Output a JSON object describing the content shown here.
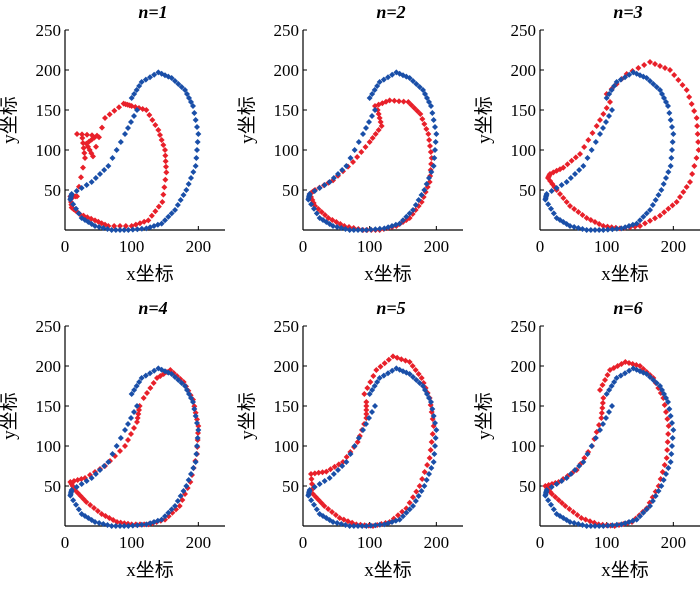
{
  "chart_data": [
    {
      "type": "scatter",
      "title": "n=1",
      "xlabel": "x坐标",
      "ylabel": "y坐标",
      "xlim": [
        0,
        240
      ],
      "ylim": [
        0,
        250
      ],
      "xticks": [
        "0",
        "100",
        "200"
      ],
      "yticks": [
        "50",
        "100",
        "150",
        "200",
        "250"
      ],
      "series": [
        {
          "color": "#e8202a",
          "x": [
            18,
            48,
            32,
            42,
            60,
            88,
            100,
            122,
            140,
            150,
            152,
            146,
            125,
            100,
            65,
            45,
            22,
            10,
            8,
            18,
            30,
            26
          ],
          "y": [
            120,
            118,
            108,
            92,
            140,
            158,
            155,
            150,
            125,
            100,
            72,
            35,
            12,
            5,
            5,
            12,
            20,
            28,
            42,
            42,
            90,
            115
          ]
        },
        {
          "color": "#1a4fa8",
          "x": [
            100,
            115,
            140,
            160,
            180,
            192,
            200,
            196,
            182,
            165,
            145,
            122,
            95,
            70,
            45,
            25,
            8,
            10,
            40,
            65,
            90,
            108
          ],
          "y": [
            165,
            185,
            197,
            190,
            175,
            155,
            120,
            80,
            50,
            25,
            8,
            2,
            0,
            0,
            5,
            15,
            38,
            45,
            60,
            80,
            120,
            150
          ]
        }
      ]
    },
    {
      "type": "scatter",
      "title": "n=2",
      "xlabel": "x坐标",
      "ylabel": "y坐标",
      "xlim": [
        0,
        240
      ],
      "ylim": [
        0,
        250
      ],
      "xticks": [
        "0",
        "100",
        "200"
      ],
      "yticks": [
        "50",
        "100",
        "150",
        "200",
        "250"
      ],
      "series": [
        {
          "color": "#e8202a",
          "x": [
            108,
            130,
            158,
            176,
            188,
            193,
            190,
            178,
            160,
            140,
            115,
            90,
            62,
            38,
            18,
            10,
            18,
            45,
            75,
            100,
            118,
            112
          ],
          "y": [
            155,
            162,
            160,
            145,
            120,
            90,
            60,
            35,
            15,
            5,
            0,
            0,
            5,
            15,
            30,
            45,
            50,
            62,
            85,
            110,
            130,
            150
          ]
        },
        {
          "color": "#1a4fa8",
          "x": [
            100,
            115,
            140,
            160,
            180,
            192,
            200,
            196,
            182,
            165,
            145,
            122,
            95,
            70,
            45,
            25,
            8,
            10,
            40,
            65,
            90,
            108
          ],
          "y": [
            165,
            185,
            197,
            190,
            175,
            155,
            120,
            80,
            50,
            25,
            8,
            2,
            0,
            0,
            5,
            15,
            38,
            45,
            60,
            80,
            120,
            150
          ]
        }
      ]
    },
    {
      "type": "scatter",
      "title": "n=3",
      "xlabel": "x坐标",
      "ylabel": "y坐标",
      "xlim": [
        0,
        240
      ],
      "ylim": [
        0,
        250
      ],
      "xticks": [
        "0",
        "100",
        "200"
      ],
      "yticks": [
        "50",
        "100",
        "150",
        "200",
        "250"
      ],
      "series": [
        {
          "color": "#e8202a",
          "x": [
            100,
            130,
            165,
            195,
            220,
            235,
            238,
            225,
            205,
            180,
            150,
            120,
            95,
            70,
            45,
            25,
            12,
            15,
            35,
            60,
            85,
            105
          ],
          "y": [
            170,
            195,
            210,
            200,
            175,
            140,
            100,
            60,
            35,
            18,
            5,
            2,
            5,
            15,
            30,
            50,
            65,
            70,
            78,
            95,
            130,
            160
          ]
        },
        {
          "color": "#1a4fa8",
          "x": [
            100,
            115,
            140,
            160,
            180,
            192,
            200,
            196,
            182,
            165,
            145,
            122,
            95,
            70,
            45,
            25,
            8,
            10,
            40,
            65,
            90,
            108
          ],
          "y": [
            165,
            185,
            197,
            190,
            175,
            155,
            120,
            80,
            50,
            25,
            8,
            2,
            0,
            0,
            5,
            15,
            38,
            45,
            60,
            80,
            120,
            150
          ]
        }
      ]
    },
    {
      "type": "scatter",
      "title": "n=4",
      "xlabel": "x坐标",
      "ylabel": "y坐标",
      "xlim": [
        0,
        240
      ],
      "ylim": [
        0,
        250
      ],
      "xticks": [
        "0",
        "100",
        "200"
      ],
      "yticks": [
        "50",
        "100",
        "150",
        "200",
        "250"
      ],
      "series": [
        {
          "color": "#e8202a",
          "x": [
            118,
            138,
            158,
            178,
            192,
            200,
            198,
            188,
            172,
            150,
            125,
            100,
            78,
            55,
            32,
            15,
            8,
            30,
            60,
            90,
            108,
            112
          ],
          "y": [
            160,
            185,
            195,
            180,
            158,
            125,
            90,
            55,
            25,
            8,
            2,
            2,
            5,
            15,
            30,
            45,
            55,
            60,
            75,
            100,
            130,
            150
          ]
        },
        {
          "color": "#1a4fa8",
          "x": [
            100,
            115,
            140,
            160,
            180,
            192,
            200,
            196,
            182,
            165,
            145,
            122,
            95,
            70,
            45,
            25,
            8,
            10,
            40,
            65,
            90,
            108
          ],
          "y": [
            165,
            185,
            197,
            190,
            175,
            155,
            120,
            80,
            50,
            25,
            8,
            2,
            0,
            0,
            5,
            15,
            38,
            45,
            60,
            80,
            120,
            150
          ]
        }
      ]
    },
    {
      "type": "scatter",
      "title": "n=5",
      "xlabel": "x坐标",
      "ylabel": "y坐标",
      "xlim": [
        0,
        240
      ],
      "ylim": [
        0,
        250
      ],
      "xticks": [
        "0",
        "100",
        "200"
      ],
      "yticks": [
        "50",
        "100",
        "150",
        "200",
        "250"
      ],
      "series": [
        {
          "color": "#e8202a",
          "x": [
            92,
            110,
            135,
            160,
            178,
            190,
            196,
            190,
            175,
            155,
            130,
            105,
            80,
            55,
            32,
            15,
            12,
            35,
            60,
            82,
            95,
            95
          ],
          "y": [
            165,
            195,
            212,
            205,
            185,
            160,
            125,
            85,
            50,
            22,
            5,
            0,
            2,
            10,
            25,
            40,
            65,
            68,
            80,
            105,
            135,
            155
          ]
        },
        {
          "color": "#1a4fa8",
          "x": [
            100,
            115,
            140,
            160,
            180,
            192,
            200,
            196,
            182,
            165,
            145,
            122,
            95,
            70,
            45,
            25,
            8,
            10,
            40,
            65,
            90,
            108
          ],
          "y": [
            165,
            185,
            197,
            190,
            175,
            155,
            120,
            80,
            50,
            25,
            8,
            2,
            0,
            0,
            5,
            15,
            38,
            45,
            60,
            80,
            120,
            150
          ]
        }
      ]
    },
    {
      "type": "scatter",
      "title": "n=6",
      "xlabel": "x坐标",
      "ylabel": "y坐标",
      "xlim": [
        0,
        240
      ],
      "ylim": [
        0,
        250
      ],
      "xticks": [
        "0",
        "100",
        "200"
      ],
      "yticks": [
        "50",
        "100",
        "150",
        "200",
        "250"
      ],
      "series": [
        {
          "color": "#e8202a",
          "x": [
            90,
            105,
            128,
            150,
            170,
            185,
            193,
            190,
            178,
            160,
            138,
            112,
            88,
            62,
            38,
            18,
            8,
            28,
            55,
            78,
            92,
            95
          ],
          "y": [
            170,
            195,
            205,
            200,
            185,
            160,
            125,
            85,
            50,
            22,
            5,
            0,
            2,
            10,
            25,
            40,
            50,
            55,
            70,
            100,
            135,
            160
          ]
        },
        {
          "color": "#1a4fa8",
          "x": [
            100,
            115,
            140,
            160,
            180,
            192,
            200,
            196,
            182,
            165,
            145,
            122,
            95,
            70,
            45,
            25,
            8,
            10,
            40,
            65,
            90,
            108
          ],
          "y": [
            165,
            185,
            197,
            190,
            175,
            155,
            120,
            80,
            50,
            25,
            8,
            2,
            0,
            0,
            5,
            15,
            38,
            45,
            60,
            80,
            120,
            150
          ]
        }
      ]
    }
  ]
}
